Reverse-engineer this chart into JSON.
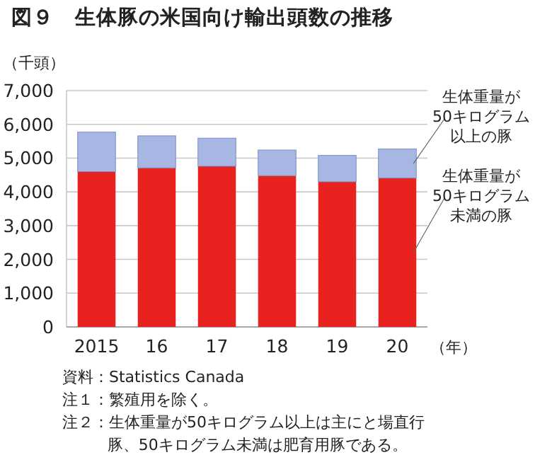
{
  "chart_data": {
    "type": "bar",
    "title": "図９　生体豚の米国向け輸出頭数の推移",
    "ylabel": "（千頭）",
    "xlabel": "（年）",
    "categories": [
      "2015",
      "16",
      "17",
      "18",
      "19",
      "20"
    ],
    "stacked": true,
    "series": [
      {
        "name": "生体重量が50キログラム未満の豚",
        "color": "#e8231f",
        "values": [
          4600,
          4710,
          4760,
          4480,
          4300,
          4410
        ]
      },
      {
        "name": "生体重量が50キログラム以上の豚",
        "color": "#a7b6e2",
        "values": [
          1170,
          950,
          830,
          760,
          780,
          860
        ]
      }
    ],
    "ylim": [
      0,
      7000
    ],
    "yticks": [
      {
        "value": 0,
        "label": "0"
      },
      {
        "value": 1000,
        "label": "1,000"
      },
      {
        "value": 2000,
        "label": "2,000"
      },
      {
        "value": 3000,
        "label": "3,000"
      },
      {
        "value": 4000,
        "label": "4,000"
      },
      {
        "value": 5000,
        "label": "5,000"
      },
      {
        "value": 6000,
        "label": "6,000"
      },
      {
        "value": 7000,
        "label": "7,000"
      }
    ],
    "grid": "y",
    "annotations": [
      "資料：Statistics Canada",
      "注１：繁殖用を除く。",
      "注２：生体重量が50キログラム以上は主にと場直行豚、50キログラム未満は肥育用豚である。"
    ]
  }
}
